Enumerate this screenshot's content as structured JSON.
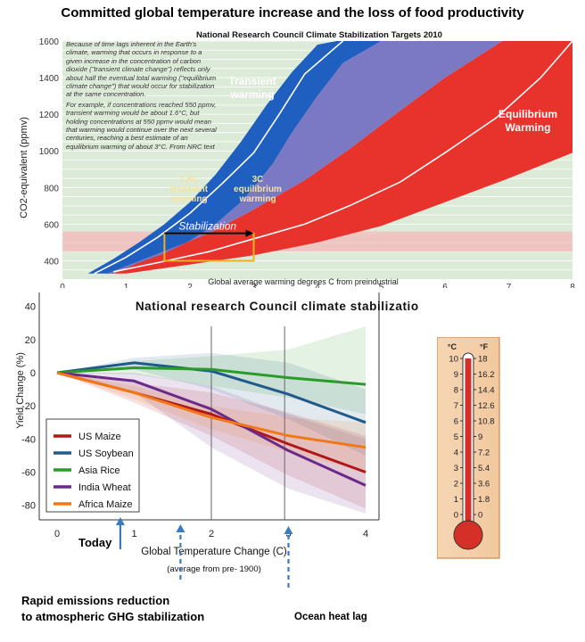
{
  "page": {
    "title": "Committed global temperature increase and the loss of food productivity"
  },
  "top_panel": {
    "note_paragraphs": [
      "Because of time lags inherent in the Earth's climate, warming that occurs in response to a given increase in the concentration of carbon dioxide (\"transient climate change\") reflects only about half the eventual total warming (\"equilibrium climate change\") that would occur for stabilization at the same concentration.",
      "For example, if concentrations reached 550 ppmv, transient warming would be about 1.6°C, but holding concentrations at 550 ppmv would mean that warming would continue over the next several centuries, reaching a best estimate of an equilibrium warming of about 3°C. From NRC text"
    ],
    "annotations": {
      "transient": [
        "Transient",
        "warming"
      ],
      "equilibrium": [
        "Equilibrium",
        "Warming"
      ],
      "transient_point": [
        "1.6C",
        "transient",
        "warming"
      ],
      "equilibrium_point": [
        "3C",
        "equilibrium",
        "warming"
      ],
      "stabilization": "Stabilization"
    }
  },
  "bottom_panel": {
    "annotations": {
      "today": "Today",
      "rapid": [
        "Rapid emissions reduction",
        "to atmospheric GHG stabilization"
      ],
      "ocean": "Ocean heat lag"
    }
  },
  "thermometer": {
    "celsius_unit": "°C",
    "fahrenheit_unit": "°F",
    "celsius_ticks": [
      "10",
      "9",
      "8",
      "7",
      "6",
      "5",
      "4",
      "3",
      "2",
      "1",
      "0"
    ],
    "fahrenheit_ticks": [
      "18",
      "16.2",
      "14.4",
      "12.6",
      "10.8",
      "9",
      "7.2",
      "5.4",
      "3.6",
      "1.8",
      "0"
    ],
    "fluid_color": "#d43027",
    "fill_level_celsius": 10
  },
  "chart_data": [
    {
      "type": "area",
      "title": "National Research Council Climate Stabilization Targets 2010",
      "xlabel": "Global average warming degrees C from preindustrial",
      "ylabel": "CO2-equivalent (ppmv)",
      "xlim": [
        0,
        8
      ],
      "ylim": [
        300,
        1600
      ],
      "x_ticks": [
        "0",
        "1",
        "2",
        "3",
        "4",
        "5",
        "6",
        "7",
        "8"
      ],
      "y_ticks": [
        "400",
        "600",
        "800",
        "1000",
        "1200",
        "1400",
        "1600"
      ],
      "grid": true,
      "colors": {
        "transient": "#1f5fbf",
        "overlap": "#7b78c4",
        "equilibrium": "#e8322c",
        "band": "#f4b8b8",
        "stabilization_box": "#f0b020"
      },
      "series": [
        {
          "name": "Transient warming",
          "band": "lower",
          "x": [
            0.4,
            0.8,
            1.2,
            1.6,
            2.0,
            2.4,
            2.8,
            3.2,
            3.6,
            4.0,
            4.3
          ],
          "values": [
            330,
            410,
            500,
            600,
            720,
            870,
            1050,
            1250,
            1430,
            1580,
            1600
          ]
        },
        {
          "name": "Transient warming",
          "band": "upper",
          "x": [
            0.8,
            1.2,
            1.6,
            2.0,
            2.4,
            2.8,
            3.0,
            3.3,
            3.6,
            4.0,
            4.4,
            5.0
          ],
          "values": [
            330,
            390,
            440,
            510,
            600,
            720,
            800,
            930,
            1100,
            1300,
            1480,
            1600
          ]
        },
        {
          "name": "Transient warming",
          "band": "center",
          "x": [
            0.5,
            1.0,
            1.5,
            2.0,
            2.5,
            3.0,
            3.4,
            3.8,
            4.4
          ],
          "values": [
            330,
            420,
            530,
            660,
            820,
            990,
            1200,
            1420,
            1600
          ]
        },
        {
          "name": "Equilibrium Warming",
          "band": "lower",
          "x": [
            0.7,
            1.5,
            2.3,
            3.0,
            3.8,
            4.5,
            5.3,
            6.0,
            6.9
          ],
          "values": [
            330,
            440,
            550,
            680,
            840,
            1010,
            1220,
            1400,
            1600
          ]
        },
        {
          "name": "Equilibrium Warming",
          "band": "upper",
          "x": [
            1.0,
            2.0,
            3.0,
            4.0,
            5.0,
            6.0,
            7.0,
            8.0
          ],
          "values": [
            330,
            380,
            430,
            500,
            590,
            720,
            850,
            990
          ]
        },
        {
          "name": "Equilibrium Warming",
          "band": "center",
          "x": [
            0.8,
            1.5,
            2.3,
            3.0,
            3.8,
            4.5,
            5.3,
            6.0,
            6.8,
            7.5,
            8.0
          ],
          "values": [
            340,
            390,
            450,
            520,
            600,
            700,
            830,
            990,
            1180,
            1400,
            1600
          ]
        }
      ],
      "stabilization_box": {
        "x": [
          1.6,
          3.0
        ],
        "y": [
          400,
          550
        ]
      },
      "highlight_band": {
        "y": [
          450,
          560
        ]
      }
    },
    {
      "type": "line",
      "title": "National research Council climate stabilization targets",
      "xlabel": "Global Temperature Change (C)",
      "xlabel_note": "(average from pre- 1900)",
      "ylabel": "Yield Change (%)",
      "xlim": [
        0,
        4
      ],
      "ylim": [
        -85,
        42
      ],
      "x_ticks": [
        "0",
        "1",
        "2",
        "3",
        "4"
      ],
      "y_ticks": [
        "40",
        "20",
        "0",
        "-20",
        "-40",
        "-60",
        "-80"
      ],
      "legend_position": "bottom-left",
      "x": [
        0,
        1,
        2,
        3,
        4
      ],
      "vlines": [
        2.0,
        2.95
      ],
      "series": [
        {
          "name": "US Maize",
          "color": "#b01818",
          "values": [
            0,
            -12,
            -25,
            -43,
            -60
          ],
          "band_low": [
            0,
            -18,
            -38,
            -62,
            -82
          ],
          "band_high": [
            0,
            -6,
            -12,
            -24,
            -38
          ]
        },
        {
          "name": "US Soybean",
          "color": "#1f5a8a",
          "values": [
            0,
            6,
            1,
            -13,
            -30
          ],
          "band_low": [
            0,
            2,
            -10,
            -28,
            -50
          ],
          "band_high": [
            0,
            9,
            12,
            6,
            -10
          ]
        },
        {
          "name": "Asia Rice",
          "color": "#2a9a2a",
          "values": [
            0,
            3,
            2,
            -3,
            -7
          ],
          "band_low": [
            0,
            -1,
            -8,
            -15,
            -25
          ],
          "band_high": [
            0,
            7,
            10,
            14,
            28
          ]
        },
        {
          "name": "India Wheat",
          "color": "#6a2a8a",
          "values": [
            0,
            -5,
            -22,
            -47,
            -68
          ],
          "band_low": [
            0,
            -12,
            -45,
            -70,
            -85
          ],
          "band_high": [
            0,
            0,
            -8,
            -25,
            -40
          ]
        },
        {
          "name": "Africa Maize",
          "color": "#f07818",
          "values": [
            0,
            -12,
            -27,
            -38,
            -45
          ],
          "band_low": [
            0,
            -16,
            -34,
            -48,
            -60
          ],
          "band_high": [
            0,
            -8,
            -20,
            -27,
            -30
          ]
        }
      ],
      "arrows": [
        {
          "label_ref": "today",
          "x": 0.82
        },
        {
          "label_ref": "rapid",
          "x": 1.6
        },
        {
          "label_ref": "ocean",
          "x": 3.0
        }
      ]
    }
  ]
}
